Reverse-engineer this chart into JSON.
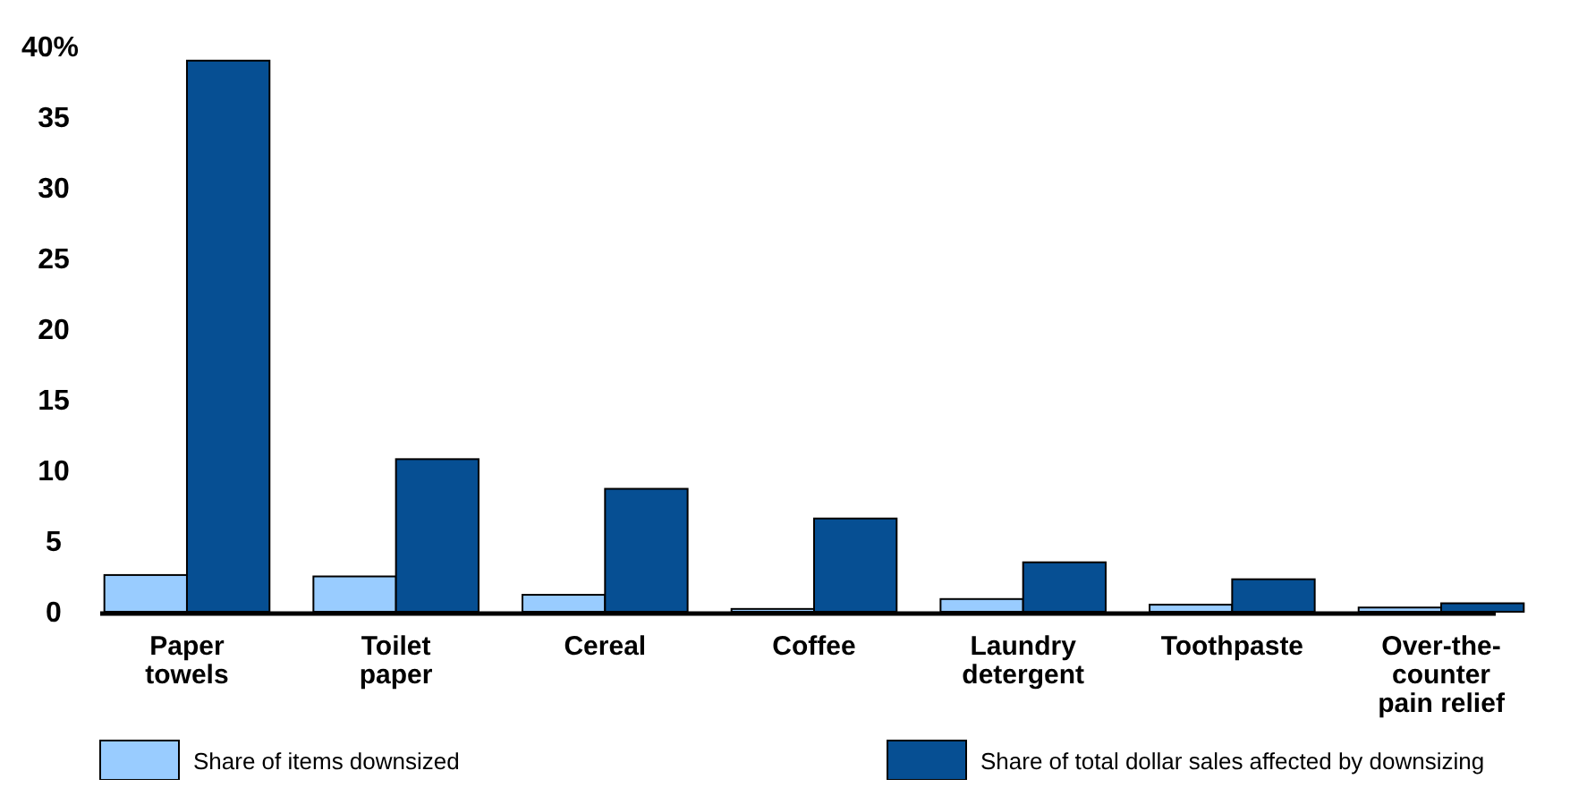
{
  "chart_data": {
    "type": "bar",
    "categories": [
      "Paper towels",
      "Toilet paper",
      "Cereal",
      "Coffee",
      "Laundry detergent",
      "Toothpaste",
      "Over-the-counter pain relief"
    ],
    "series": [
      {
        "name": "Share of items downsized",
        "color": "#99ccff",
        "values": [
          2.6,
          2.5,
          1.2,
          0.2,
          0.9,
          0.5,
          0.3
        ]
      },
      {
        "name": "Share of total dollar sales affected by downsizing",
        "color": "#064f93",
        "values": [
          39.0,
          10.8,
          8.7,
          6.6,
          3.5,
          2.3,
          0.6
        ]
      }
    ],
    "ylim": [
      0,
      40
    ],
    "yticks": [
      0,
      5,
      10,
      15,
      20,
      25,
      30,
      35,
      {
        "value": 40,
        "label": "40%"
      }
    ],
    "grid": false,
    "legend": "bottom"
  }
}
